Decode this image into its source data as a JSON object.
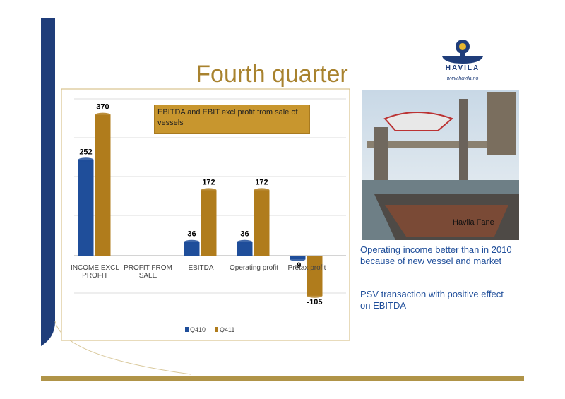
{
  "title": "Fourth quarter",
  "logo": {
    "name": "HAVILA",
    "url": "www.havila.no"
  },
  "photo_caption": "Havila Fane",
  "bullets": [
    "Operating income better than in 2010 because of new vessel and market",
    "PSV transaction with positive effect on EBITDA"
  ],
  "chart_data": {
    "type": "bar",
    "annotation": "EBITDA and EBIT excl profit from sale of vessels",
    "categories": [
      "INCOME EXCL PROFIT",
      "PROFIT FROM SALE",
      "EBITDA",
      "Operating profit",
      "Pretax profit"
    ],
    "series": [
      {
        "name": "Q410",
        "color": "#1f4e9a",
        "values": [
          252,
          null,
          36,
          36,
          -9
        ]
      },
      {
        "name": "Q411",
        "color": "#b07c1c",
        "values": [
          370,
          null,
          172,
          172,
          -105
        ]
      }
    ],
    "ylim": [
      -200,
      425
    ],
    "legend": "bottom"
  }
}
